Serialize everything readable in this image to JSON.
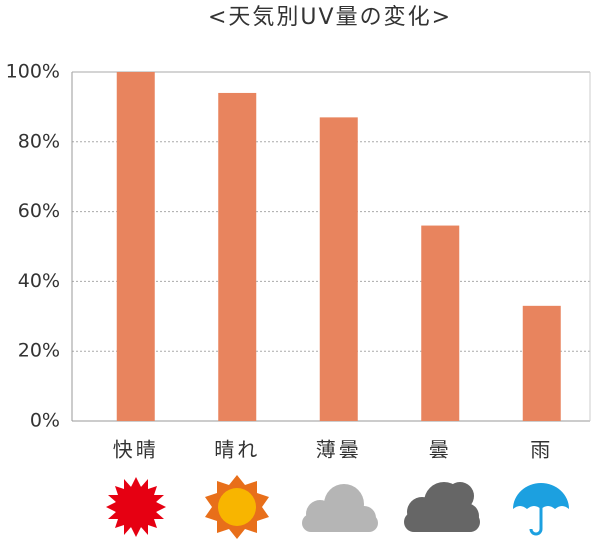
{
  "chart_data": {
    "type": "bar",
    "title": "<天気別UV量の変化>",
    "categories": [
      "快晴",
      "晴れ",
      "薄曇",
      "曇",
      "雨"
    ],
    "values": [
      100,
      94,
      87,
      56,
      33
    ],
    "color": "#e8845e",
    "ylim": [
      0,
      100
    ],
    "yticks": [
      {
        "value": 0,
        "label": "0%"
      },
      {
        "value": 20,
        "label": "20%"
      },
      {
        "value": 40,
        "label": "40%"
      },
      {
        "value": 60,
        "label": "60%"
      },
      {
        "value": 80,
        "label": "80%"
      },
      {
        "value": 100,
        "label": "100%"
      }
    ],
    "grid": true
  }
}
